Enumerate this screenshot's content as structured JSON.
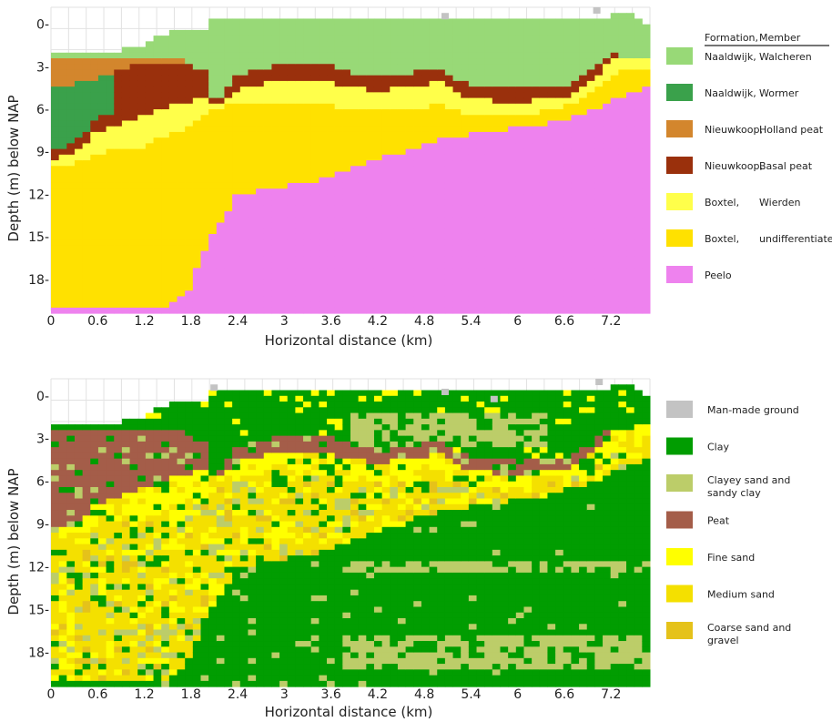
{
  "colors": {
    "naaldwijk_walcheren": "#98d977",
    "naaldwijk_wormer": "#3aa14b",
    "nieuwkoop_holland": "#d3862d",
    "nieuwkoop_basal": "#9a300c",
    "boxtel_wierden": "#ffff4a",
    "boxtel_undiff": "#ffe100",
    "peelo": "#ee82ee",
    "man_made": "#c3c3c3",
    "clay": "#019d01",
    "clayey_sand": "#bccd69",
    "peat": "#a45d49",
    "fine_sand": "#ffff00",
    "medium_sand": "#f4e000",
    "coarse_sand": "#e5c21a"
  },
  "chart_data": [
    {
      "type": "heatmap",
      "panel": "lithostratigraphy",
      "xlabel": "Horizontal distance (km)",
      "ylabel": "Depth (m) below NAP",
      "xticks": [
        "0",
        "0.6",
        "1.2",
        "1.8",
        "2.4",
        "3",
        "3.6",
        "4.2",
        "4.8",
        "5.4",
        "6",
        "6.6",
        "7.2"
      ],
      "yticks": [
        "0-",
        "3-",
        "6-",
        "9-",
        "12-",
        "15-",
        "18-"
      ],
      "xlim": [
        0,
        7.7
      ],
      "ylim": [
        -1.2,
        20.2
      ],
      "legend_header": {
        "col1": "Formation,",
        "col2": "Member"
      },
      "legend": [
        {
          "formation": "Naaldwijk,",
          "member": "Walcheren",
          "color_key": "naaldwijk_walcheren"
        },
        {
          "formation": "Naaldwijk,",
          "member": "Wormer",
          "color_key": "naaldwijk_wormer"
        },
        {
          "formation": "Nieuwkoop,",
          "member": "Holland peat",
          "color_key": "nieuwkoop_holland"
        },
        {
          "formation": "Nieuwkoop,",
          "member": "Basal peat",
          "color_key": "nieuwkoop_basal"
        },
        {
          "formation": "Boxtel,",
          "member": "Wierden",
          "color_key": "boxtel_wierden"
        },
        {
          "formation": "Boxtel,",
          "member": "undifferentiated",
          "color_key": "boxtel_undiff"
        },
        {
          "formation": "Peelo",
          "member": "",
          "color_key": "peelo"
        }
      ],
      "profiles": {
        "x_km": [
          0,
          0.3,
          0.6,
          0.9,
          1.2,
          1.5,
          1.8,
          2.0,
          2.1,
          2.4,
          3.0,
          3.6,
          4.2,
          4.8,
          5.0,
          5.4,
          6.0,
          6.6,
          7.0,
          7.2,
          7.5,
          7.7
        ],
        "top": [
          2.0,
          2.0,
          2.0,
          1.8,
          1.5,
          0.6,
          0.5,
          0.6,
          -0.5,
          -0.5,
          -0.5,
          -0.5,
          -0.5,
          -0.5,
          -0.5,
          -0.5,
          -0.5,
          -0.5,
          -0.2,
          -0.7,
          -0.7,
          0.0
        ],
        "walcheren_base": [
          4.5,
          4.2,
          3.8,
          3.2,
          2.8,
          2.6,
          3.0,
          3.2,
          6.0,
          3.5,
          2.8,
          3.0,
          3.8,
          3.3,
          3.0,
          4.5,
          4.6,
          4.5,
          3.2,
          2.0,
          2.5,
          2.5
        ],
        "wormer_base": [
          9.0,
          8.5,
          6.5,
          6.0,
          5.0,
          4.6,
          4.4,
          4.0,
          6.0,
          3.5,
          2.8,
          3.0,
          3.8,
          3.3,
          3.0,
          4.5,
          4.6,
          4.5,
          3.2,
          2.0,
          2.5,
          2.5
        ],
        "holland_base": [
          9.0,
          8.5,
          6.5,
          6.0,
          5.0,
          4.6,
          4.4,
          4.0,
          6.0,
          3.5,
          2.8,
          3.0,
          3.8,
          3.3,
          3.0,
          4.5,
          4.6,
          4.5,
          3.2,
          2.0,
          2.5,
          2.5
        ],
        "basal_base": [
          9.5,
          9.2,
          7.5,
          7.0,
          6.5,
          5.8,
          5.5,
          5.0,
          6.0,
          4.6,
          3.8,
          4.2,
          4.7,
          4.4,
          4.0,
          5.3,
          5.5,
          5.2,
          4.0,
          2.5,
          2.5,
          2.5
        ],
        "wierden_base": [
          10.0,
          9.8,
          9.2,
          8.8,
          8.6,
          7.8,
          7.2,
          6.4,
          6.0,
          5.6,
          5.4,
          5.8,
          6.2,
          5.9,
          5.6,
          6.4,
          6.5,
          5.8,
          4.8,
          3.5,
          3.2,
          3.0
        ],
        "peelo_top": [
          20.0,
          20.0,
          20.0,
          20.0,
          20.0,
          20.0,
          18.5,
          15.5,
          14.5,
          12.0,
          11.5,
          10.8,
          9.5,
          8.6,
          8.0,
          7.8,
          7.3,
          6.8,
          6.0,
          5.3,
          4.8,
          4.5
        ]
      }
    },
    {
      "type": "heatmap",
      "panel": "lithoclass",
      "xlabel": "Horizontal distance (km)",
      "ylabel": "Depth (m) below NAP",
      "xticks": [
        "0",
        "0.6",
        "1.2",
        "1.8",
        "2.4",
        "3",
        "3.6",
        "4.2",
        "4.8",
        "5.4",
        "6",
        "6.6",
        "7.2"
      ],
      "yticks": [
        "0-",
        "3-",
        "6-",
        "9-",
        "12-",
        "15-",
        "18-"
      ],
      "xlim": [
        0,
        7.7
      ],
      "ylim": [
        -1.2,
        20.2
      ],
      "legend": [
        {
          "label": "Man-made ground",
          "color_key": "man_made"
        },
        {
          "label": "Clay",
          "color_key": "clay"
        },
        {
          "label": "Clayey sand and sandy clay",
          "line1": "Clayey sand and",
          "line2": "sandy clay",
          "color_key": "clayey_sand"
        },
        {
          "label": "Peat",
          "color_key": "peat"
        },
        {
          "label": "Fine sand",
          "color_key": "fine_sand"
        },
        {
          "label": "Medium sand",
          "color_key": "medium_sand"
        },
        {
          "label": "Coarse sand and gravel",
          "line1": "Coarse sand and",
          "line2": "gravel",
          "color_key": "coarse_sand"
        }
      ]
    }
  ]
}
